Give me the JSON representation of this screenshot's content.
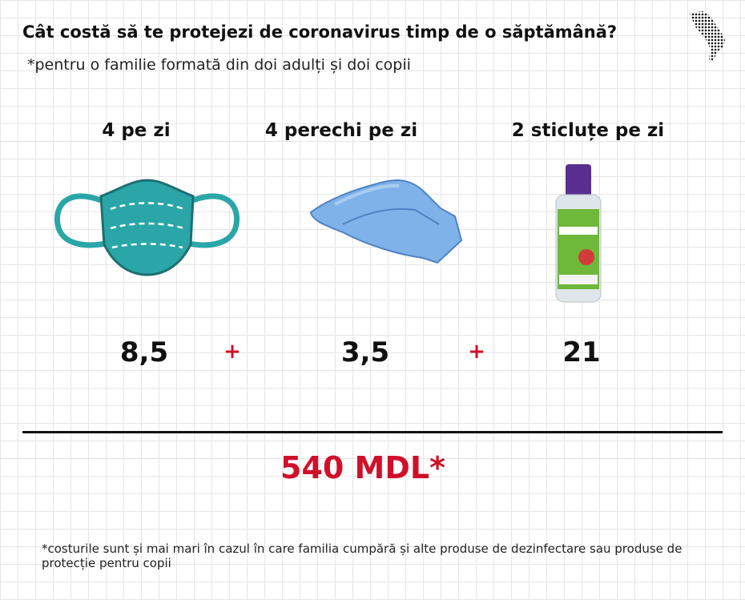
{
  "header": {
    "title": "Cât costă să te protejezi de coronavirus timp de o săptămână?",
    "subtitle": "*pentru o familie formată din doi adulți și doi copii"
  },
  "items": [
    {
      "label": "4 pe zi",
      "price": "8,5"
    },
    {
      "label": "4 perechi pe zi",
      "price": "3,5"
    },
    {
      "label": "2 sticluțe pe zi",
      "price": "21"
    }
  ],
  "operators": [
    "+",
    "+"
  ],
  "total": "540 MDL*",
  "footnote": "*costurile sunt și mai mari în cazul în care familia cumpără și alte produse de dezinfectare sau produse de protecție pentru copii"
}
